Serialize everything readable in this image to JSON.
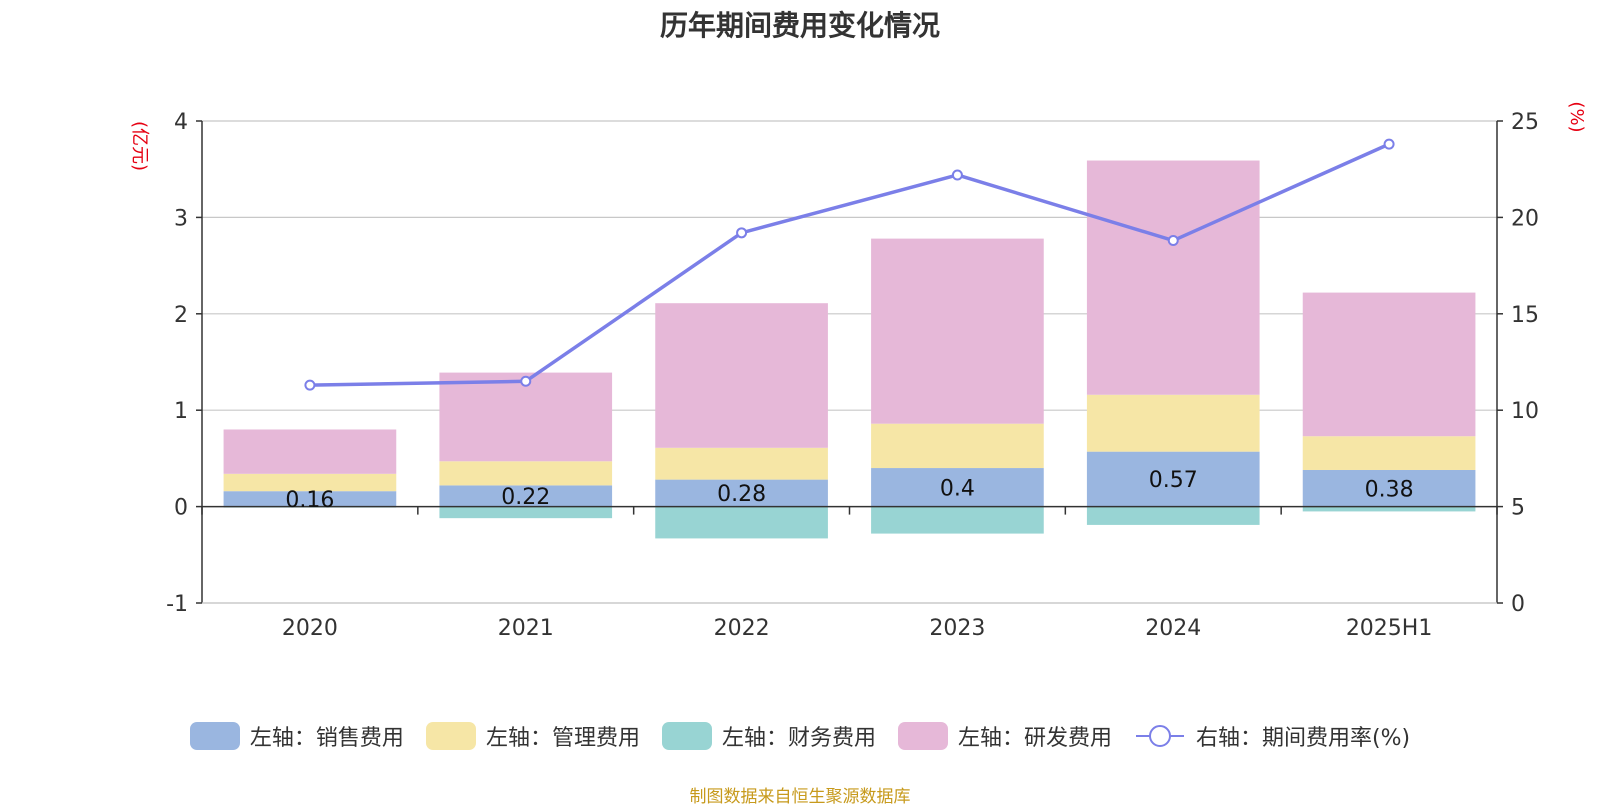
{
  "chart_data": {
    "type": "bar",
    "title": "历年期间费用变化情况",
    "categories": [
      "2020",
      "2021",
      "2022",
      "2023",
      "2024",
      "2025H1"
    ],
    "left_axis": {
      "unit": "(亿元)",
      "ylim": [
        -1,
        4
      ],
      "ticks": [
        -1,
        0,
        1,
        2,
        3,
        4
      ]
    },
    "right_axis": {
      "unit": "(%)",
      "ylim": [
        0,
        25
      ],
      "ticks": [
        0,
        5,
        10,
        15,
        20,
        25
      ]
    },
    "stacked": true,
    "series": [
      {
        "name": "左轴：销售费用",
        "axis": "left",
        "color": "#9ab6e0",
        "values": [
          0.16,
          0.22,
          0.28,
          0.4,
          0.57,
          0.38
        ],
        "show_labels": true
      },
      {
        "name": "左轴：管理费用",
        "axis": "left",
        "color": "#f6e6a6",
        "values": [
          0.18,
          0.25,
          0.33,
          0.46,
          0.59,
          0.35
        ]
      },
      {
        "name": "左轴：财务费用",
        "axis": "left",
        "color": "#98d4d3",
        "values": [
          -0.01,
          -0.12,
          -0.33,
          -0.28,
          -0.19,
          -0.05
        ]
      },
      {
        "name": "左轴：研发费用",
        "axis": "left",
        "color": "#e6b8d8",
        "values": [
          0.46,
          0.92,
          1.5,
          1.92,
          2.43,
          1.49
        ]
      },
      {
        "name": "右轴：期间费用率(%)",
        "axis": "right",
        "type": "line",
        "color": "#7b7fe8",
        "values": [
          11.3,
          11.5,
          19.2,
          22.2,
          18.8,
          23.8
        ]
      }
    ],
    "legend_position": "bottom",
    "grid": true
  },
  "source_note": "制图数据来自恒生聚源数据库"
}
